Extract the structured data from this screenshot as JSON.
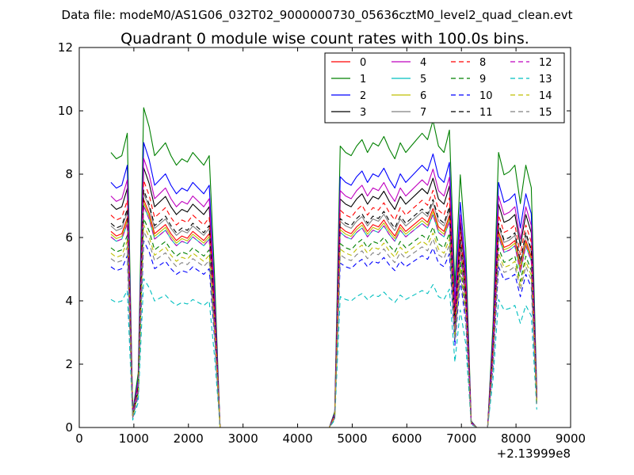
{
  "chart_data": {
    "type": "line",
    "suptitle": "Data file: modeM0/AS1G06_032T02_9000000730_05636cztM0_level2_quad_clean.evt",
    "title": "Quadrant 0 module wise count rates with 100.0s bins.",
    "xlabel": "",
    "ylabel": "",
    "x_offset_label": "+2.13999e8",
    "xlim": [
      0,
      9000
    ],
    "ylim": [
      0,
      12
    ],
    "xticks": [
      0,
      1000,
      2000,
      3000,
      4000,
      5000,
      6000,
      7000,
      8000,
      9000
    ],
    "yticks": [
      0,
      2,
      4,
      6,
      8,
      10,
      12
    ],
    "grid": false,
    "legend": {
      "position": "top-right",
      "columns": 4
    },
    "base": [
      [
        580,
        0.86
      ],
      [
        680,
        0.84
      ],
      [
        780,
        0.85
      ],
      [
        880,
        0.92
      ],
      [
        980,
        0.05
      ],
      [
        1080,
        0.17
      ],
      [
        1180,
        1.0
      ],
      [
        1280,
        0.94
      ],
      [
        1380,
        0.85
      ],
      [
        1480,
        0.87
      ],
      [
        1580,
        0.89
      ],
      [
        1680,
        0.85
      ],
      [
        1780,
        0.82
      ],
      [
        1880,
        0.84
      ],
      [
        1980,
        0.83
      ],
      [
        2080,
        0.86
      ],
      [
        2180,
        0.84
      ],
      [
        2280,
        0.82
      ],
      [
        2380,
        0.85
      ],
      [
        2480,
        0.47
      ],
      [
        2580,
        0.0
      ],
      [
        3000,
        0.0
      ],
      [
        3500,
        0.0
      ],
      [
        4000,
        0.0
      ],
      [
        4580,
        0.0
      ],
      [
        4680,
        0.05
      ],
      [
        4780,
        0.88
      ],
      [
        4880,
        0.86
      ],
      [
        4980,
        0.85
      ],
      [
        5080,
        0.88
      ],
      [
        5180,
        0.9
      ],
      [
        5280,
        0.86
      ],
      [
        5380,
        0.89
      ],
      [
        5480,
        0.88
      ],
      [
        5580,
        0.91
      ],
      [
        5680,
        0.87
      ],
      [
        5780,
        0.84
      ],
      [
        5880,
        0.89
      ],
      [
        5980,
        0.86
      ],
      [
        6080,
        0.88
      ],
      [
        6180,
        0.9
      ],
      [
        6280,
        0.92
      ],
      [
        6380,
        0.9
      ],
      [
        6480,
        0.96
      ],
      [
        6580,
        0.88
      ],
      [
        6680,
        0.86
      ],
      [
        6780,
        0.93
      ],
      [
        6880,
        0.44
      ],
      [
        6980,
        0.79
      ],
      [
        7080,
        0.56
      ],
      [
        7180,
        0.02
      ],
      [
        7280,
        0.0
      ],
      [
        7380,
        0.0
      ],
      [
        7480,
        0.0
      ],
      [
        7580,
        0.33
      ],
      [
        7680,
        0.86
      ],
      [
        7780,
        0.79
      ],
      [
        7880,
        0.8
      ],
      [
        7980,
        0.82
      ],
      [
        8080,
        0.7
      ],
      [
        8180,
        0.82
      ],
      [
        8280,
        0.75
      ],
      [
        8380,
        0.12
      ]
    ],
    "series": [
      {
        "name": "0",
        "color": "#ff0000",
        "dash": "solid",
        "scale": 7.2
      },
      {
        "name": "1",
        "color": "#008000",
        "dash": "solid",
        "scale": 10.1
      },
      {
        "name": "2",
        "color": "#0000ff",
        "dash": "solid",
        "scale": 9.0
      },
      {
        "name": "3",
        "color": "#000000",
        "dash": "solid",
        "scale": 8.2
      },
      {
        "name": "4",
        "color": "#bf00bf",
        "dash": "solid",
        "scale": 8.5
      },
      {
        "name": "5",
        "color": "#00bfbf",
        "dash": "solid",
        "scale": 7.0
      },
      {
        "name": "6",
        "color": "#bfbf00",
        "dash": "solid",
        "scale": 7.1
      },
      {
        "name": "7",
        "color": "#808080",
        "dash": "solid",
        "scale": 7.4
      },
      {
        "name": "8",
        "color": "#ff0000",
        "dash": "dashed",
        "scale": 7.8
      },
      {
        "name": "9",
        "color": "#008000",
        "dash": "dashed",
        "scale": 6.6
      },
      {
        "name": "10",
        "color": "#0000ff",
        "dash": "dashed",
        "scale": 5.9
      },
      {
        "name": "11",
        "color": "#000000",
        "dash": "dashed",
        "scale": 7.5
      },
      {
        "name": "12",
        "color": "#bf00bf",
        "dash": "dashed",
        "scale": 7.0
      },
      {
        "name": "13",
        "color": "#00bfbf",
        "dash": "dashed",
        "scale": 4.7
      },
      {
        "name": "14",
        "color": "#bfbf00",
        "dash": "dashed",
        "scale": 6.4
      },
      {
        "name": "15",
        "color": "#808080",
        "dash": "dashed",
        "scale": 6.2
      }
    ]
  }
}
